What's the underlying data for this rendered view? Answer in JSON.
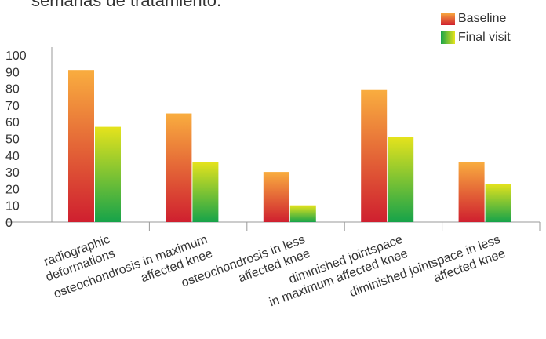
{
  "title_fragment": "semanas de tratamiento.",
  "legend": [
    {
      "label": "Baseline",
      "color_top": "#f9ad3f",
      "color_bottom": "#cf1f2f"
    },
    {
      "label": "Final visit",
      "color_top": "#e6e31c",
      "color_bottom": "#16a34a"
    }
  ],
  "chart_data": {
    "type": "bar",
    "categories": [
      [
        "radiographic",
        "deformations"
      ],
      [
        "osteochondrosis in maximum",
        "affected knee"
      ],
      [
        "osteochondrosis in less",
        "affected knee"
      ],
      [
        "diminished jointspace",
        "in maximum affected knee"
      ],
      [
        "diminished jointspace in less",
        "affected knee"
      ]
    ],
    "series": [
      {
        "name": "Baseline",
        "values": [
          91,
          65,
          30,
          79,
          36
        ]
      },
      {
        "name": "Final visit",
        "values": [
          57,
          36,
          10,
          51,
          23
        ]
      }
    ],
    "ylim": [
      0,
      100
    ],
    "yticks": [
      0,
      10,
      20,
      30,
      40,
      50,
      60,
      70,
      80,
      90,
      100
    ],
    "legend_position": "top-right",
    "grid": false
  }
}
